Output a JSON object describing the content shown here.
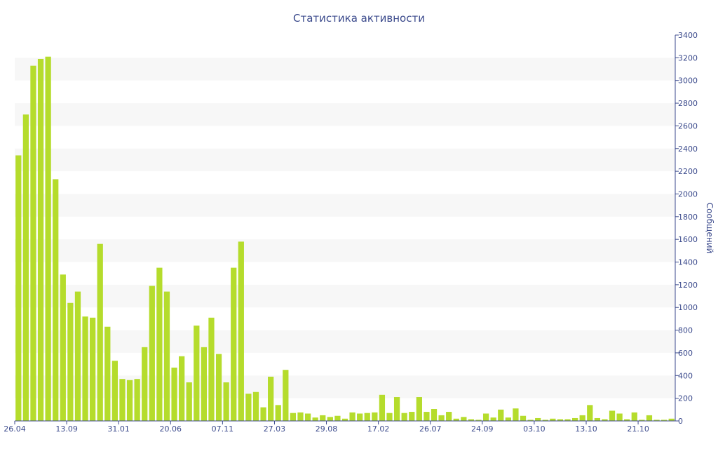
{
  "chart_data": {
    "type": "bar",
    "title": "Статистика активности",
    "ylabel": "Сообщений",
    "ylim": [
      0,
      3400
    ],
    "y_ticks": [
      0,
      200,
      400,
      600,
      800,
      1000,
      1200,
      1400,
      1600,
      1800,
      2000,
      2200,
      2400,
      2600,
      2800,
      3000,
      3200,
      3400
    ],
    "x_tick_labels": [
      {
        "label": "26.04",
        "index": 0
      },
      {
        "label": "13.09",
        "index": 7
      },
      {
        "label": "31.01",
        "index": 14
      },
      {
        "label": "20.06",
        "index": 21
      },
      {
        "label": "07.11",
        "index": 28
      },
      {
        "label": "27.03",
        "index": 35
      },
      {
        "label": "29.08",
        "index": 42
      },
      {
        "label": "17.02",
        "index": 49
      },
      {
        "label": "26.07",
        "index": 56
      },
      {
        "label": "24.09",
        "index": 63
      },
      {
        "label": "03.10",
        "index": 70
      },
      {
        "label": "13.10",
        "index": 77
      },
      {
        "label": "21.10",
        "index": 84
      }
    ],
    "bar_color": "#b5dc2c",
    "grid_band_color": "#f7f7f7",
    "axis_color": "#3b4a8c",
    "y_axis_side": "right",
    "values": [
      2340,
      2700,
      3130,
      3190,
      3210,
      2130,
      1290,
      1040,
      1140,
      920,
      910,
      1560,
      830,
      530,
      370,
      360,
      370,
      650,
      1190,
      1350,
      1140,
      470,
      570,
      340,
      840,
      650,
      910,
      590,
      340,
      1350,
      1580,
      240,
      255,
      120,
      390,
      140,
      450,
      70,
      75,
      65,
      30,
      50,
      35,
      45,
      20,
      75,
      65,
      70,
      75,
      230,
      70,
      210,
      70,
      80,
      210,
      80,
      105,
      50,
      80,
      20,
      35,
      15,
      10,
      65,
      30,
      100,
      30,
      110,
      45,
      10,
      25,
      10,
      20,
      15,
      15,
      25,
      50,
      140,
      25,
      15,
      90,
      65,
      15,
      75,
      10,
      50,
      10,
      10,
      20
    ]
  }
}
